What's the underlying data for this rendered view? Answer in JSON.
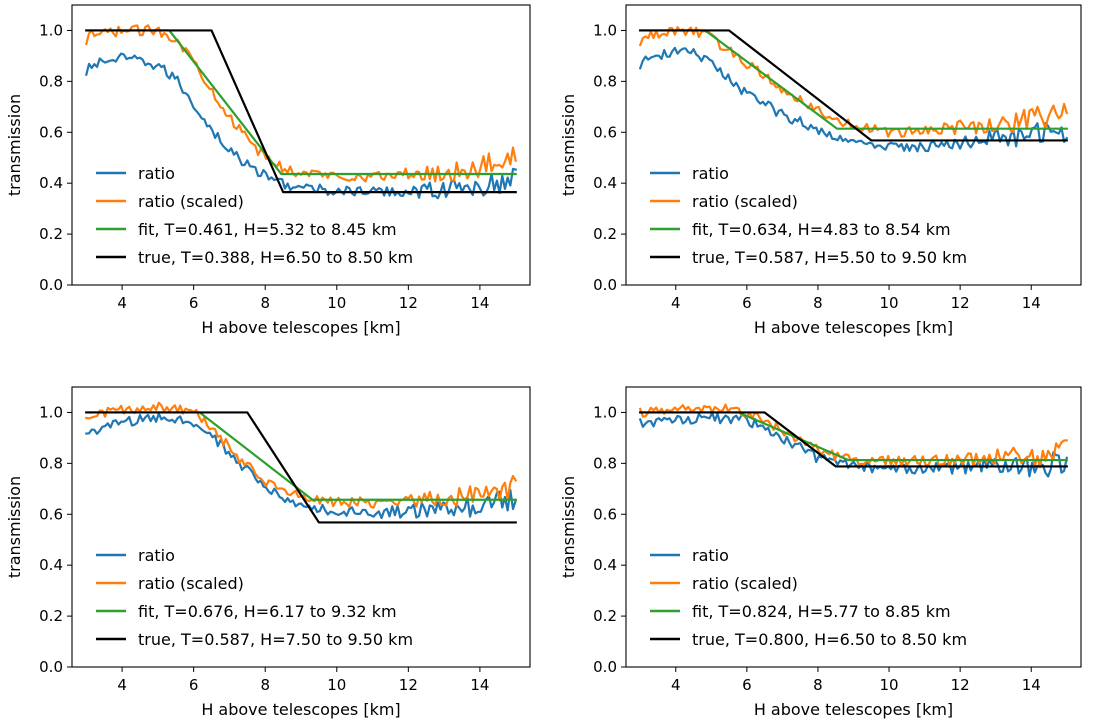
{
  "chart_data": [
    {
      "type": "line",
      "xlabel": "H above telescopes [km]",
      "ylabel": "transmission",
      "xlim": [
        2.6,
        15.4
      ],
      "ylim": [
        0.0,
        1.1
      ],
      "xticks": [
        "4",
        "6",
        "8",
        "10",
        "12",
        "14"
      ],
      "yticks": [
        "0.0",
        "0.2",
        "0.4",
        "0.6",
        "0.8",
        "1.0"
      ],
      "legend": {
        "position": "lower-left",
        "entries": [
          "ratio",
          "ratio (scaled)",
          "fit, T=0.461, H=5.32 to 8.45 km",
          "true, T=0.388, H=6.50 to 8.50 km"
        ]
      },
      "noise_amplitude": 0.02,
      "series": [
        {
          "name": "ratio",
          "color": "#1f77b4",
          "points": [
            [
              3.0,
              0.82
            ],
            [
              3.1,
              0.86
            ],
            [
              3.5,
              0.88
            ],
            [
              4.0,
              0.89
            ],
            [
              4.5,
              0.88
            ],
            [
              5.0,
              0.86
            ],
            [
              5.5,
              0.81
            ],
            [
              6.0,
              0.71
            ],
            [
              6.5,
              0.61
            ],
            [
              7.0,
              0.53
            ],
            [
              7.5,
              0.47
            ],
            [
              8.0,
              0.43
            ],
            [
              8.5,
              0.4
            ],
            [
              9.0,
              0.38
            ],
            [
              10.0,
              0.37
            ],
            [
              11.0,
              0.365
            ],
            [
              12.0,
              0.37
            ],
            [
              13.0,
              0.375
            ],
            [
              14.0,
              0.385
            ],
            [
              15.0,
              0.41
            ]
          ]
        },
        {
          "name": "ratio (scaled)",
          "color": "#ff7f0e",
          "points": [
            [
              3.0,
              0.94
            ],
            [
              3.1,
              0.98
            ],
            [
              4.0,
              1.0
            ],
            [
              5.0,
              1.0
            ],
            [
              5.5,
              0.97
            ],
            [
              6.0,
              0.88
            ],
            [
              6.5,
              0.77
            ],
            [
              7.0,
              0.66
            ],
            [
              7.5,
              0.57
            ],
            [
              8.0,
              0.5
            ],
            [
              8.5,
              0.46
            ],
            [
              9.0,
              0.44
            ],
            [
              10.0,
              0.43
            ],
            [
              11.0,
              0.425
            ],
            [
              12.0,
              0.435
            ],
            [
              13.0,
              0.44
            ],
            [
              14.0,
              0.46
            ],
            [
              15.0,
              0.52
            ]
          ]
        },
        {
          "name": "fit, T=0.461, H=5.32 to 8.45 km",
          "color": "#2ca02c",
          "points": [
            [
              3.0,
              1.0
            ],
            [
              5.32,
              1.0
            ],
            [
              8.45,
              0.436
            ],
            [
              15.0,
              0.436
            ]
          ]
        },
        {
          "name": "true, T=0.388, H=6.50 to 8.50 km",
          "color": "#000000",
          "points": [
            [
              3.0,
              1.0
            ],
            [
              6.5,
              1.0
            ],
            [
              8.5,
              0.365
            ],
            [
              15.0,
              0.365
            ]
          ]
        }
      ]
    },
    {
      "type": "line",
      "xlabel": "H above telescopes [km]",
      "ylabel": "transmission",
      "xlim": [
        2.6,
        15.4
      ],
      "ylim": [
        0.0,
        1.1
      ],
      "xticks": [
        "4",
        "6",
        "8",
        "10",
        "12",
        "14"
      ],
      "yticks": [
        "0.0",
        "0.2",
        "0.4",
        "0.6",
        "0.8",
        "1.0"
      ],
      "legend": {
        "position": "lower-left",
        "entries": [
          "ratio",
          "ratio (scaled)",
          "fit, T=0.634, H=4.83 to 8.54 km",
          "true, T=0.587, H=5.50 to 9.50 km"
        ]
      },
      "noise_amplitude": 0.02,
      "series": [
        {
          "name": "ratio",
          "color": "#1f77b4",
          "points": [
            [
              3.0,
              0.87
            ],
            [
              3.5,
              0.9
            ],
            [
              4.0,
              0.92
            ],
            [
              4.5,
              0.91
            ],
            [
              5.0,
              0.87
            ],
            [
              5.5,
              0.81
            ],
            [
              6.0,
              0.75
            ],
            [
              7.0,
              0.67
            ],
            [
              8.0,
              0.61
            ],
            [
              9.0,
              0.56
            ],
            [
              10.0,
              0.54
            ],
            [
              11.0,
              0.545
            ],
            [
              12.0,
              0.56
            ],
            [
              13.0,
              0.575
            ],
            [
              14.0,
              0.59
            ],
            [
              15.0,
              0.61
            ]
          ]
        },
        {
          "name": "ratio (scaled)",
          "color": "#ff7f0e",
          "points": [
            [
              3.0,
              0.96
            ],
            [
              3.5,
              0.99
            ],
            [
              4.0,
              1.0
            ],
            [
              4.5,
              1.0
            ],
            [
              5.0,
              0.97
            ],
            [
              6.0,
              0.87
            ],
            [
              7.0,
              0.77
            ],
            [
              8.0,
              0.69
            ],
            [
              9.0,
              0.62
            ],
            [
              10.0,
              0.6
            ],
            [
              11.0,
              0.605
            ],
            [
              12.0,
              0.62
            ],
            [
              13.0,
              0.63
            ],
            [
              14.0,
              0.65
            ],
            [
              15.0,
              0.68
            ]
          ]
        },
        {
          "name": "fit, T=0.634, H=4.83 to 8.54 km",
          "color": "#2ca02c",
          "points": [
            [
              3.0,
              1.0
            ],
            [
              4.83,
              1.0
            ],
            [
              8.54,
              0.614
            ],
            [
              15.0,
              0.614
            ]
          ]
        },
        {
          "name": "true, T=0.587, H=5.50 to 9.50 km",
          "color": "#000000",
          "points": [
            [
              3.0,
              1.0
            ],
            [
              5.5,
              1.0
            ],
            [
              9.5,
              0.568
            ],
            [
              15.0,
              0.568
            ]
          ]
        }
      ]
    },
    {
      "type": "line",
      "xlabel": "H above telescopes [km]",
      "ylabel": "transmission",
      "xlim": [
        2.6,
        15.4
      ],
      "ylim": [
        0.0,
        1.1
      ],
      "xticks": [
        "4",
        "6",
        "8",
        "10",
        "12",
        "14"
      ],
      "yticks": [
        "0.0",
        "0.2",
        "0.4",
        "0.6",
        "0.8",
        "1.0"
      ],
      "legend": {
        "position": "lower-left",
        "entries": [
          "ratio",
          "ratio (scaled)",
          "fit, T=0.676, H=6.17 to 9.32 km",
          "true, T=0.587, H=7.50 to 9.50 km"
        ]
      },
      "noise_amplitude": 0.02,
      "series": [
        {
          "name": "ratio",
          "color": "#1f77b4",
          "points": [
            [
              3.0,
              0.92
            ],
            [
              4.0,
              0.96
            ],
            [
              5.0,
              0.98
            ],
            [
              6.0,
              0.96
            ],
            [
              6.5,
              0.91
            ],
            [
              7.0,
              0.84
            ],
            [
              7.5,
              0.77
            ],
            [
              8.0,
              0.71
            ],
            [
              8.5,
              0.66
            ],
            [
              9.0,
              0.63
            ],
            [
              10.0,
              0.61
            ],
            [
              11.0,
              0.605
            ],
            [
              12.0,
              0.61
            ],
            [
              13.0,
              0.62
            ],
            [
              14.0,
              0.635
            ],
            [
              15.0,
              0.66
            ]
          ]
        },
        {
          "name": "ratio (scaled)",
          "color": "#ff7f0e",
          "points": [
            [
              3.0,
              0.98
            ],
            [
              4.0,
              1.01
            ],
            [
              5.0,
              1.02
            ],
            [
              6.0,
              1.0
            ],
            [
              6.5,
              0.94
            ],
            [
              7.0,
              0.86
            ],
            [
              7.5,
              0.79
            ],
            [
              8.0,
              0.73
            ],
            [
              8.5,
              0.69
            ],
            [
              9.0,
              0.67
            ],
            [
              10.0,
              0.65
            ],
            [
              11.0,
              0.645
            ],
            [
              12.0,
              0.65
            ],
            [
              13.0,
              0.66
            ],
            [
              14.0,
              0.68
            ],
            [
              15.0,
              0.71
            ]
          ]
        },
        {
          "name": "fit, T=0.676, H=6.17 to 9.32 km",
          "color": "#2ca02c",
          "points": [
            [
              3.0,
              1.0
            ],
            [
              6.17,
              1.0
            ],
            [
              9.32,
              0.657
            ],
            [
              15.0,
              0.657
            ]
          ]
        },
        {
          "name": "true, T=0.587, H=7.50 to 9.50 km",
          "color": "#000000",
          "points": [
            [
              3.0,
              1.0
            ],
            [
              7.5,
              1.0
            ],
            [
              9.5,
              0.568
            ],
            [
              15.0,
              0.568
            ]
          ]
        }
      ]
    },
    {
      "type": "line",
      "xlabel": "H above telescopes [km]",
      "ylabel": "transmission",
      "xlim": [
        2.6,
        15.4
      ],
      "ylim": [
        0.0,
        1.1
      ],
      "xticks": [
        "4",
        "6",
        "8",
        "10",
        "12",
        "14"
      ],
      "yticks": [
        "0.0",
        "0.2",
        "0.4",
        "0.6",
        "0.8",
        "1.0"
      ],
      "legend": {
        "position": "lower-left",
        "entries": [
          "ratio",
          "ratio (scaled)",
          "fit, T=0.824, H=5.77 to 8.85 km",
          "true, T=0.800, H=6.50 to 8.50 km"
        ]
      },
      "noise_amplitude": 0.02,
      "series": [
        {
          "name": "ratio",
          "color": "#1f77b4",
          "points": [
            [
              3.0,
              0.96
            ],
            [
              4.0,
              0.97
            ],
            [
              5.0,
              0.98
            ],
            [
              6.0,
              0.97
            ],
            [
              6.5,
              0.94
            ],
            [
              7.0,
              0.9
            ],
            [
              7.5,
              0.86
            ],
            [
              8.0,
              0.82
            ],
            [
              8.5,
              0.8
            ],
            [
              9.0,
              0.79
            ],
            [
              10.0,
              0.78
            ],
            [
              11.0,
              0.78
            ],
            [
              12.0,
              0.785
            ],
            [
              13.0,
              0.79
            ],
            [
              14.0,
              0.79
            ],
            [
              15.0,
              0.8
            ]
          ]
        },
        {
          "name": "ratio (scaled)",
          "color": "#ff7f0e",
          "points": [
            [
              3.0,
              1.0
            ],
            [
              4.0,
              1.01
            ],
            [
              5.0,
              1.02
            ],
            [
              6.0,
              1.0
            ],
            [
              6.5,
              0.97
            ],
            [
              7.0,
              0.93
            ],
            [
              7.5,
              0.89
            ],
            [
              8.0,
              0.85
            ],
            [
              8.5,
              0.83
            ],
            [
              9.0,
              0.815
            ],
            [
              10.0,
              0.81
            ],
            [
              11.0,
              0.81
            ],
            [
              12.0,
              0.815
            ],
            [
              13.0,
              0.82
            ],
            [
              14.0,
              0.825
            ],
            [
              15.0,
              0.84
            ]
          ]
        },
        {
          "name": "fit, T=0.824, H=5.77 to 8.85 km",
          "color": "#2ca02c",
          "points": [
            [
              3.0,
              1.0
            ],
            [
              5.77,
              1.0
            ],
            [
              8.85,
              0.813
            ],
            [
              15.0,
              0.813
            ]
          ]
        },
        {
          "name": "true, T=0.800, H=6.50 to 8.50 km",
          "color": "#000000",
          "points": [
            [
              3.0,
              1.0
            ],
            [
              6.5,
              1.0
            ],
            [
              8.5,
              0.788
            ],
            [
              15.0,
              0.788
            ]
          ]
        }
      ]
    }
  ]
}
